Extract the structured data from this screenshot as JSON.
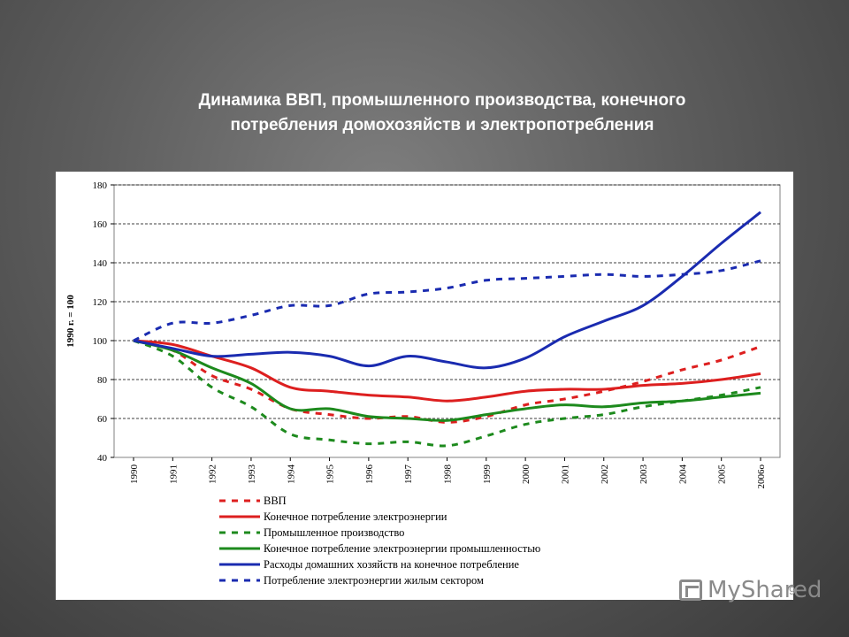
{
  "slide": {
    "title_line1": "Динамика ВВП, промышленного производства, конечного",
    "title_line2": "потребления домохозяйств и электропотребления",
    "watermark": "MyShared",
    "page_number": "9"
  },
  "colors": {
    "red": "#dd1f1f",
    "green": "#1d8a1d",
    "blue": "#1a2bb0",
    "grid": "#000000"
  },
  "chart_data": {
    "type": "line",
    "title": "",
    "xlabel": "",
    "ylabel": "1990 г. = 100",
    "ylim": [
      40,
      180
    ],
    "yticks": [
      40,
      60,
      80,
      100,
      120,
      140,
      160,
      180
    ],
    "grid": "horizontal dashed",
    "legend_position": "bottom",
    "categories": [
      "1990",
      "1991",
      "1992",
      "1993",
      "1994",
      "1995",
      "1996",
      "1997",
      "1998",
      "1999",
      "2000",
      "2001",
      "2002",
      "2003",
      "2004",
      "2005",
      "2006о"
    ],
    "series": [
      {
        "name": "ВВП",
        "color": "#dd1f1f",
        "dashed": true,
        "values": [
          100,
          95,
          82,
          75,
          65,
          62,
          60,
          61,
          58,
          61,
          67,
          70,
          74,
          79,
          85,
          90,
          97
        ]
      },
      {
        "name": "Конечное потребление электроэнергии",
        "color": "#dd1f1f",
        "dashed": false,
        "values": [
          100,
          98,
          92,
          86,
          76,
          74,
          72,
          71,
          69,
          71,
          74,
          75,
          75,
          77,
          78,
          80,
          83
        ]
      },
      {
        "name": "Промышленное производство",
        "color": "#1d8a1d",
        "dashed": true,
        "values": [
          100,
          92,
          76,
          66,
          52,
          49,
          47,
          48,
          46,
          51,
          57,
          60,
          62,
          66,
          69,
          72,
          76
        ]
      },
      {
        "name": "Конечное потребление электроэнергии промышленностью",
        "color": "#1d8a1d",
        "dashed": false,
        "values": [
          100,
          95,
          86,
          78,
          65,
          65,
          61,
          60,
          59,
          62,
          65,
          67,
          66,
          68,
          69,
          71,
          73
        ]
      },
      {
        "name": "Расходы домашних хозяйств на конечное потребление",
        "color": "#1a2bb0",
        "dashed": false,
        "values": [
          100,
          96,
          92,
          93,
          94,
          92,
          87,
          92,
          89,
          86,
          91,
          102,
          110,
          118,
          133,
          150,
          166
        ]
      },
      {
        "name": "Потребление электроэнергии жилым сектором",
        "color": "#1a2bb0",
        "dashed": true,
        "values": [
          100,
          109,
          109,
          113,
          118,
          118,
          124,
          125,
          127,
          131,
          132,
          133,
          134,
          133,
          134,
          136,
          141
        ]
      }
    ]
  }
}
